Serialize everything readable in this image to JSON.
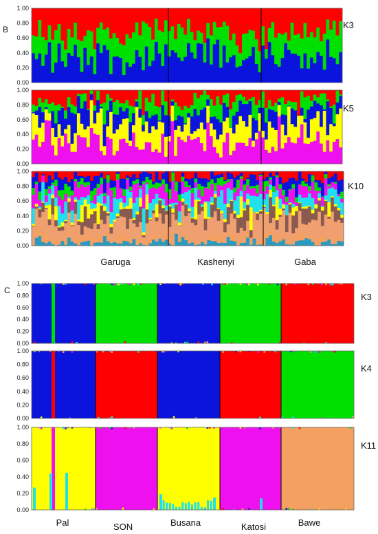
{
  "panel_B_label": "B",
  "panel_C_label": "C",
  "tick_labels": [
    "1.00",
    "0.80",
    "0.60",
    "0.40",
    "0.20",
    "0.00"
  ],
  "colors": {
    "red": "#ff0000",
    "green": "#00e000",
    "blue": "#0a14dc",
    "yellow": "#ffff00",
    "magenta": "#ee10ee",
    "cyan": "#20e0f0",
    "brown": "#8a5a50",
    "orange": "#f0a070",
    "teal": "#2a9ac0",
    "salmon": "#f4a060"
  },
  "chart_data": [
    {
      "type": "bar",
      "subtype": "stacked-admixture",
      "panel": "B",
      "k_label": "K3",
      "ylim": [
        0,
        1
      ],
      "populations": [
        "Garuga",
        "Kashenyi",
        "Gaba"
      ],
      "individuals_per_population": [
        42,
        29,
        25
      ],
      "approx_mean_ancestry": {
        "red": 0.25,
        "green": 0.33,
        "blue": 0.42
      }
    },
    {
      "type": "bar",
      "subtype": "stacked-admixture",
      "panel": "B",
      "k_label": "K5",
      "ylim": [
        0,
        1
      ],
      "populations": [
        "Garuga",
        "Kashenyi",
        "Gaba"
      ],
      "individuals_per_population": [
        42,
        29,
        25
      ],
      "approx_mean_ancestry": {
        "red": 0.18,
        "green": 0.17,
        "blue": 0.2,
        "yellow": 0.22,
        "magenta": 0.23
      }
    },
    {
      "type": "bar",
      "subtype": "stacked-admixture",
      "panel": "B",
      "k_label": "K10",
      "ylim": [
        0,
        1
      ],
      "populations": [
        "Garuga",
        "Kashenyi",
        "Gaba"
      ],
      "individuals_per_population": [
        42,
        29,
        25
      ],
      "approx_mean_ancestry": {
        "red": 0.06,
        "blue": 0.1,
        "green": 0.06,
        "magenta": 0.12,
        "cyan": 0.14,
        "yellow": 0.05,
        "brown": 0.15,
        "orange": 0.18,
        "teal": 0.08,
        "salmon": 0.06
      }
    },
    {
      "type": "bar",
      "subtype": "stacked-admixture",
      "panel": "C",
      "k_label": "K3",
      "ylim": [
        0,
        1
      ],
      "populations": [
        "Pal",
        "SON",
        "Busana",
        "Katosi",
        "Bawe"
      ],
      "population_major_cluster": [
        "blue",
        "green",
        "blue",
        "green",
        "red"
      ],
      "approx_major_proportion": 0.99,
      "outlier": {
        "population": "Pal",
        "cluster": "green",
        "proportion": 1.0
      }
    },
    {
      "type": "bar",
      "subtype": "stacked-admixture",
      "panel": "C",
      "k_label": "K4",
      "ylim": [
        0,
        1
      ],
      "populations": [
        "Pal",
        "SON",
        "Busana",
        "Katosi",
        "Bawe"
      ],
      "population_major_cluster": [
        "blue",
        "red",
        "blue",
        "red",
        "green"
      ],
      "approx_major_proportion": 0.99,
      "outlier": {
        "population": "Pal",
        "cluster": "red",
        "proportion": 1.0
      }
    },
    {
      "type": "bar",
      "subtype": "stacked-admixture",
      "panel": "C",
      "k_label": "K11",
      "ylim": [
        0,
        1
      ],
      "populations": [
        "Pal",
        "SON",
        "Busana",
        "Katosi",
        "Bawe"
      ],
      "population_major_cluster": [
        "yellow",
        "magenta",
        "yellow",
        "magenta",
        "salmon"
      ],
      "approx_major_proportion": 0.97,
      "outlier": {
        "population": "Pal",
        "cluster": "magenta",
        "proportion": 1.0
      },
      "notable_minor_cyan": [
        0.27,
        0.44,
        0.45,
        0.19,
        0.15,
        0.14
      ]
    }
  ]
}
